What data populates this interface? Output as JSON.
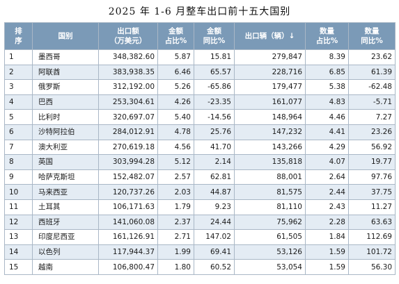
{
  "title": "2025 年 1-6 月整车出口前十五大国别",
  "headers": [
    [
      "排",
      "序"
    ],
    [
      "国别"
    ],
    [
      "出口额",
      "（万美元）"
    ],
    [
      "金额",
      "占比%"
    ],
    [
      "金额",
      "同比%"
    ],
    [
      "出口辆（辆）↓"
    ],
    [
      "数量",
      "占比%"
    ],
    [
      "数量",
      "同比%"
    ]
  ],
  "rows": [
    [
      "1",
      "墨西哥",
      "348,382.60",
      "5.87",
      "15.81",
      "279,847",
      "8.39",
      "23.62"
    ],
    [
      "2",
      "阿联酋",
      "383,938.35",
      "6.46",
      "65.57",
      "228,716",
      "6.85",
      "61.39"
    ],
    [
      "3",
      "俄罗斯",
      "312,192.00",
      "5.26",
      "-65.86",
      "179,477",
      "5.38",
      "-62.48"
    ],
    [
      "4",
      "巴西",
      "253,304.61",
      "4.26",
      "-23.35",
      "161,077",
      "4.83",
      "-5.71"
    ],
    [
      "5",
      "比利时",
      "320,697.07",
      "5.40",
      "-14.56",
      "148,964",
      "4.46",
      "7.27"
    ],
    [
      "6",
      "沙特阿拉伯",
      "284,012.91",
      "4.78",
      "25.76",
      "147,232",
      "4.41",
      "23.26"
    ],
    [
      "7",
      "澳大利亚",
      "270,619.18",
      "4.56",
      "41.70",
      "143,266",
      "4.29",
      "56.92"
    ],
    [
      "8",
      "英国",
      "303,994.28",
      "5.12",
      "2.14",
      "135,818",
      "4.07",
      "19.77"
    ],
    [
      "9",
      "哈萨克斯坦",
      "152,482.07",
      "2.57",
      "62.81",
      "88,001",
      "2.64",
      "97.76"
    ],
    [
      "10",
      "马来西亚",
      "120,737.26",
      "2.03",
      "44.87",
      "81,575",
      "2.44",
      "37.75"
    ],
    [
      "11",
      "土耳其",
      "106,171.63",
      "1.79",
      "9.23",
      "81,110",
      "2.43",
      "11.27"
    ],
    [
      "12",
      "西班牙",
      "141,060.08",
      "2.37",
      "24.44",
      "75,962",
      "2.28",
      "63.63"
    ],
    [
      "13",
      "印度尼西亚",
      "161,126.91",
      "2.71",
      "147.02",
      "61,505",
      "1.84",
      "112.69"
    ],
    [
      "14",
      "以色列",
      "117,944.37",
      "1.99",
      "69.41",
      "53,126",
      "1.59",
      "101.72"
    ],
    [
      "15",
      "越南",
      "106,800.47",
      "1.80",
      "60.52",
      "53,054",
      "1.59",
      "56.30"
    ]
  ],
  "colors": {
    "header_bg": "#7b9ab7",
    "header_text": "#ffffff",
    "row_alt": "#e4ecf4",
    "border": "#a9b7c6"
  }
}
